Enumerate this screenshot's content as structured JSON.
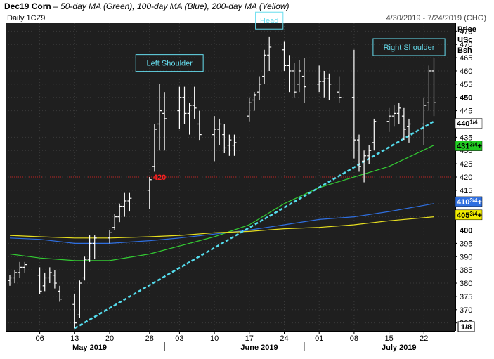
{
  "title": {
    "symbol": "Dec19 Corn",
    "dash": " – ",
    "description": "50-day MA (Green), 100-day MA (Blue), 200-day MA (Yellow)"
  },
  "header": {
    "left_label": "Daily 1CZ9",
    "right_label": "4/30/2019 - 7/24/2019 (CHG)"
  },
  "axis_header": [
    "Price",
    "USc",
    "Bsh"
  ],
  "corner_label": "1/8",
  "colors": {
    "background": "#1f1f1f",
    "bars": "#ffffff",
    "ma50": "#33cc33",
    "ma100": "#2f6fe0",
    "ma200": "#e8e020",
    "trendline": "#55ddee",
    "level_line": "#c02020",
    "level_label": "#ff2020",
    "annotation_text": "#66ddee"
  },
  "chart_data": {
    "type": "ohlc",
    "title": "Dec19 Corn",
    "ylim": [
      362,
      478
    ],
    "xlim": [
      "2019-04-30",
      "2019-07-24"
    ],
    "grid": true,
    "y_ticks": [
      365,
      370,
      375,
      380,
      385,
      390,
      395,
      400,
      405,
      410,
      415,
      420,
      425,
      430,
      435,
      440,
      445,
      450,
      455,
      460,
      465,
      470,
      475
    ],
    "y_tick_labels": [
      "365",
      "370",
      "375",
      "380",
      "385",
      "390",
      "395",
      "400",
      "405",
      "410",
      "415",
      "420",
      "425",
      "430",
      "435",
      "440",
      "445",
      "450",
      "455",
      "460",
      "465",
      "470",
      "475"
    ],
    "x_ticks": [
      {
        "date": "2019-05-06",
        "label": "06"
      },
      {
        "date": "2019-05-13",
        "label": "13"
      },
      {
        "date": "2019-05-20",
        "label": "20"
      },
      {
        "date": "2019-05-28",
        "label": "28"
      },
      {
        "date": "2019-06-03",
        "label": "03"
      },
      {
        "date": "2019-06-10",
        "label": "10"
      },
      {
        "date": "2019-06-17",
        "label": "17"
      },
      {
        "date": "2019-06-24",
        "label": "24"
      },
      {
        "date": "2019-07-01",
        "label": "01"
      },
      {
        "date": "2019-07-08",
        "label": "08"
      },
      {
        "date": "2019-07-15",
        "label": "15"
      },
      {
        "date": "2019-07-22",
        "label": "22"
      }
    ],
    "months": [
      {
        "date": "2019-05-16",
        "label": "May 2019"
      },
      {
        "date": "2019-06-19",
        "label": "June 2019"
      },
      {
        "date": "2019-07-17",
        "label": "July 2019"
      }
    ],
    "month_separators": [
      "2019-05-31",
      "2019-06-28"
    ],
    "bars": [
      {
        "date": "2019-04-30",
        "o": 381,
        "h": 383,
        "l": 379,
        "c": 382
      },
      {
        "date": "2019-05-01",
        "o": 382,
        "h": 385,
        "l": 380,
        "c": 384
      },
      {
        "date": "2019-05-02",
        "o": 384,
        "h": 388,
        "l": 382,
        "c": 386
      },
      {
        "date": "2019-05-03",
        "o": 386,
        "h": 388,
        "l": 384,
        "c": 387
      },
      {
        "date": "2019-05-06",
        "o": 383,
        "h": 386,
        "l": 376,
        "c": 377
      },
      {
        "date": "2019-05-07",
        "o": 379,
        "h": 384,
        "l": 377,
        "c": 382
      },
      {
        "date": "2019-05-08",
        "o": 382,
        "h": 386,
        "l": 380,
        "c": 384
      },
      {
        "date": "2019-05-09",
        "o": 383,
        "h": 385,
        "l": 378,
        "c": 380
      },
      {
        "date": "2019-05-10",
        "o": 377,
        "h": 379,
        "l": 373,
        "c": 374
      },
      {
        "date": "2019-05-13",
        "o": 372,
        "h": 376,
        "l": 363,
        "c": 365
      },
      {
        "date": "2019-05-14",
        "o": 368,
        "h": 381,
        "l": 367,
        "c": 380
      },
      {
        "date": "2019-05-15",
        "o": 382,
        "h": 390,
        "l": 381,
        "c": 389
      },
      {
        "date": "2019-05-16",
        "o": 389,
        "h": 398,
        "l": 388,
        "c": 395
      },
      {
        "date": "2019-05-17",
        "o": 395,
        "h": 398,
        "l": 389,
        "c": 397
      },
      {
        "date": "2019-05-20",
        "o": 397,
        "h": 400,
        "l": 395,
        "c": 399
      },
      {
        "date": "2019-05-21",
        "o": 401,
        "h": 406,
        "l": 400,
        "c": 405
      },
      {
        "date": "2019-05-22",
        "o": 405,
        "h": 410,
        "l": 403,
        "c": 409
      },
      {
        "date": "2019-05-23",
        "o": 409,
        "h": 414,
        "l": 405,
        "c": 411
      },
      {
        "date": "2019-05-24",
        "o": 411,
        "h": 414,
        "l": 407,
        "c": 412
      },
      {
        "date": "2019-05-28",
        "o": 415,
        "h": 420,
        "l": 408,
        "c": 419
      },
      {
        "date": "2019-05-29",
        "o": 424,
        "h": 440,
        "l": 422,
        "c": 438
      },
      {
        "date": "2019-05-30",
        "o": 440,
        "h": 455,
        "l": 430,
        "c": 445
      },
      {
        "date": "2019-05-31",
        "o": 444,
        "h": 452,
        "l": 430,
        "c": 442
      },
      {
        "date": "2019-06-03",
        "o": 445,
        "h": 454,
        "l": 438,
        "c": 450
      },
      {
        "date": "2019-06-04",
        "o": 450,
        "h": 454,
        "l": 440,
        "c": 444
      },
      {
        "date": "2019-06-05",
        "o": 444,
        "h": 448,
        "l": 436,
        "c": 447
      },
      {
        "date": "2019-06-06",
        "o": 447,
        "h": 454,
        "l": 442,
        "c": 446
      },
      {
        "date": "2019-06-07",
        "o": 440,
        "h": 445,
        "l": 434,
        "c": 436
      },
      {
        "date": "2019-06-10",
        "o": 436,
        "h": 443,
        "l": 426,
        "c": 438
      },
      {
        "date": "2019-06-11",
        "o": 438,
        "h": 442,
        "l": 432,
        "c": 440
      },
      {
        "date": "2019-06-12",
        "o": 436,
        "h": 440,
        "l": 429,
        "c": 431
      },
      {
        "date": "2019-06-13",
        "o": 432,
        "h": 436,
        "l": 428,
        "c": 434
      },
      {
        "date": "2019-06-14",
        "o": 432,
        "h": 436,
        "l": 428,
        "c": 433
      },
      {
        "date": "2019-06-17",
        "o": 443,
        "h": 450,
        "l": 441,
        "c": 448
      },
      {
        "date": "2019-06-18",
        "o": 449,
        "h": 452,
        "l": 445,
        "c": 451
      },
      {
        "date": "2019-06-19",
        "o": 452,
        "h": 458,
        "l": 449,
        "c": 455
      },
      {
        "date": "2019-06-20",
        "o": 458,
        "h": 468,
        "l": 455,
        "c": 466
      },
      {
        "date": "2019-06-21",
        "o": 466,
        "h": 473,
        "l": 460,
        "c": 469
      },
      {
        "date": "2019-06-24",
        "o": 468,
        "h": 471,
        "l": 460,
        "c": 462
      },
      {
        "date": "2019-06-25",
        "o": 462,
        "h": 466,
        "l": 452,
        "c": 460
      },
      {
        "date": "2019-06-26",
        "o": 460,
        "h": 463,
        "l": 450,
        "c": 452
      },
      {
        "date": "2019-06-27",
        "o": 455,
        "h": 464,
        "l": 452,
        "c": 460
      },
      {
        "date": "2019-06-28",
        "o": 458,
        "h": 465,
        "l": 448,
        "c": 454
      },
      {
        "date": "2019-07-01",
        "o": 455,
        "h": 462,
        "l": 452,
        "c": 456
      },
      {
        "date": "2019-07-02",
        "o": 456,
        "h": 460,
        "l": 450,
        "c": 457
      },
      {
        "date": "2019-07-03",
        "o": 457,
        "h": 459,
        "l": 449,
        "c": 455
      },
      {
        "date": "2019-07-05",
        "o": 452,
        "h": 458,
        "l": 448,
        "c": 450
      },
      {
        "date": "2019-07-08",
        "o": 450,
        "h": 468,
        "l": 427,
        "c": 434
      },
      {
        "date": "2019-07-09",
        "o": 434,
        "h": 436,
        "l": 422,
        "c": 424
      },
      {
        "date": "2019-07-10",
        "o": 426,
        "h": 430,
        "l": 418,
        "c": 428
      },
      {
        "date": "2019-07-11",
        "o": 428,
        "h": 432,
        "l": 425,
        "c": 430
      },
      {
        "date": "2019-07-12",
        "o": 433,
        "h": 442,
        "l": 430,
        "c": 441
      },
      {
        "date": "2019-07-15",
        "o": 441,
        "h": 446,
        "l": 437,
        "c": 443
      },
      {
        "date": "2019-07-16",
        "o": 443,
        "h": 447,
        "l": 439,
        "c": 444
      },
      {
        "date": "2019-07-17",
        "o": 444,
        "h": 448,
        "l": 440,
        "c": 446
      },
      {
        "date": "2019-07-18",
        "o": 443,
        "h": 446,
        "l": 434,
        "c": 438
      },
      {
        "date": "2019-07-19",
        "o": 439,
        "h": 442,
        "l": 433,
        "c": 440
      },
      {
        "date": "2019-07-22",
        "o": 440,
        "h": 450,
        "l": 432,
        "c": 447
      },
      {
        "date": "2019-07-23",
        "o": 448,
        "h": 462,
        "l": 445,
        "c": 460
      },
      {
        "date": "2019-07-24",
        "o": 460,
        "h": 465,
        "l": 443,
        "c": 448
      }
    ],
    "moving_averages": [
      {
        "name": "50-day MA",
        "color": "#33cc33",
        "points": [
          [
            "2019-04-30",
            391
          ],
          [
            "2019-05-06",
            389.5
          ],
          [
            "2019-05-13",
            388.5
          ],
          [
            "2019-05-20",
            388.5
          ],
          [
            "2019-05-28",
            391
          ],
          [
            "2019-06-03",
            394
          ],
          [
            "2019-06-10",
            397.5
          ],
          [
            "2019-06-17",
            402
          ],
          [
            "2019-06-24",
            410
          ],
          [
            "2019-07-01",
            416
          ],
          [
            "2019-07-08",
            420
          ],
          [
            "2019-07-15",
            424
          ],
          [
            "2019-07-24",
            432
          ]
        ]
      },
      {
        "name": "100-day MA",
        "color": "#2f6fe0",
        "points": [
          [
            "2019-04-30",
            397
          ],
          [
            "2019-05-06",
            396.5
          ],
          [
            "2019-05-13",
            395
          ],
          [
            "2019-05-20",
            395
          ],
          [
            "2019-05-28",
            396
          ],
          [
            "2019-06-03",
            397
          ],
          [
            "2019-06-10",
            398.5
          ],
          [
            "2019-06-17",
            400
          ],
          [
            "2019-06-24",
            402
          ],
          [
            "2019-07-01",
            404
          ],
          [
            "2019-07-08",
            405
          ],
          [
            "2019-07-15",
            407
          ],
          [
            "2019-07-24",
            410
          ]
        ]
      },
      {
        "name": "200-day MA",
        "color": "#e8e020",
        "points": [
          [
            "2019-04-30",
            398
          ],
          [
            "2019-05-06",
            397.5
          ],
          [
            "2019-05-13",
            397
          ],
          [
            "2019-05-20",
            397
          ],
          [
            "2019-05-28",
            397.5
          ],
          [
            "2019-06-03",
            398
          ],
          [
            "2019-06-10",
            399
          ],
          [
            "2019-06-17",
            399.5
          ],
          [
            "2019-06-24",
            400.5
          ],
          [
            "2019-07-01",
            401
          ],
          [
            "2019-07-08",
            402
          ],
          [
            "2019-07-15",
            403.5
          ],
          [
            "2019-07-24",
            405
          ]
        ]
      }
    ],
    "trendline": {
      "from": [
        "2019-05-13",
        363
      ],
      "to": [
        "2019-07-24",
        441
      ]
    },
    "level": {
      "value": 420,
      "label": "420",
      "label_date": "2019-05-29"
    },
    "annotations": [
      {
        "text": "Left Shoulder",
        "date": "2019-06-01",
        "price": 463
      },
      {
        "text": "Head",
        "date": "2019-06-21",
        "price": 479
      },
      {
        "text": "Right Shoulder",
        "date": "2019-07-19",
        "price": 469
      }
    ],
    "price_tags": [
      {
        "label": "440",
        "fraction": "1/4",
        "suffix": "",
        "price": 440.25,
        "bg": "#ffffff",
        "fg": "#000000"
      },
      {
        "label": "431",
        "fraction": "3/4",
        "suffix": "+",
        "price": 431.75,
        "bg": "#22cc22",
        "fg": "#000000"
      },
      {
        "label": "410",
        "fraction": "3/4",
        "suffix": "+",
        "price": 410.75,
        "bg": "#2f6fe0",
        "fg": "#ffffff"
      },
      {
        "label": "405",
        "fraction": "3/4",
        "suffix": "+",
        "price": 405.75,
        "bg": "#f2ec00",
        "fg": "#000000"
      }
    ]
  }
}
